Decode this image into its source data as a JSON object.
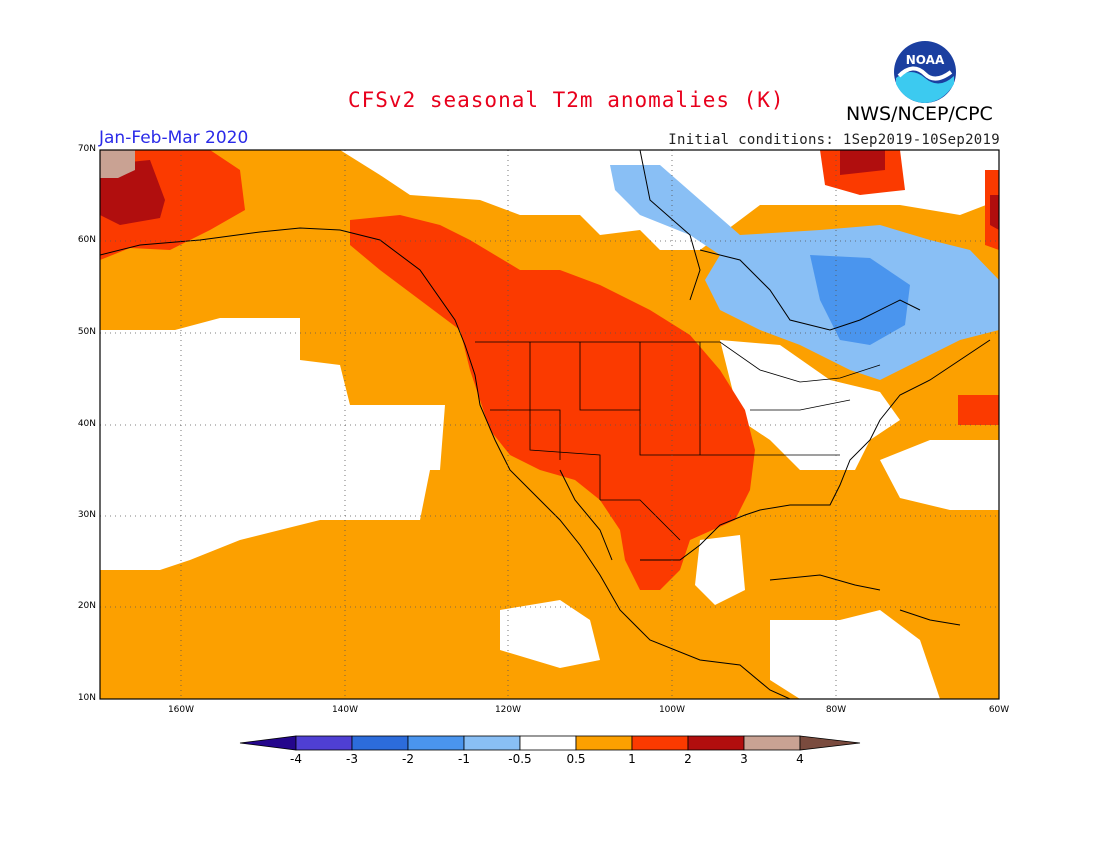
{
  "header": {
    "title": "CFSv2 seasonal T2m anomalies (K)",
    "agency": "NWS/NCEP/CPC",
    "period": "Jan-Feb-Mar 2020",
    "initial_conditions": "Initial conditions: 1Sep2019-10Sep2019",
    "logo_text": "NOAA"
  },
  "map": {
    "lat_labels": [
      "70N",
      "60N",
      "50N",
      "40N",
      "30N",
      "20N",
      "10N"
    ],
    "lon_labels": [
      "160W",
      "140W",
      "120W",
      "100W",
      "80W",
      "60W"
    ],
    "extent": {
      "lon_min": -170,
      "lon_max": -60,
      "lat_min": 10,
      "lat_max": 70
    },
    "regions": [
      {
        "name": "background-warm",
        "level": "0.5 to 1"
      },
      {
        "name": "western-us-canada",
        "level": "1 to 2"
      },
      {
        "name": "alaska-northwest",
        "level": "2 to 3"
      },
      {
        "name": "eastern-canada-cold",
        "level": "-1 to -0.5"
      },
      {
        "name": "hudson-bay-cold",
        "level": "-2 to -1"
      }
    ]
  },
  "colorbar": {
    "labels": [
      "-4",
      "-3",
      "-2",
      "-1",
      "-0.5",
      "0.5",
      "1",
      "2",
      "3",
      "4"
    ],
    "colors": [
      "#24068c",
      "#4f3fd3",
      "#2c6cdb",
      "#4a95ee",
      "#89bff5",
      "#ffffff",
      "#fca000",
      "#fb3a00",
      "#b10e0e",
      "#c9a293",
      "#7a4b3e"
    ]
  }
}
